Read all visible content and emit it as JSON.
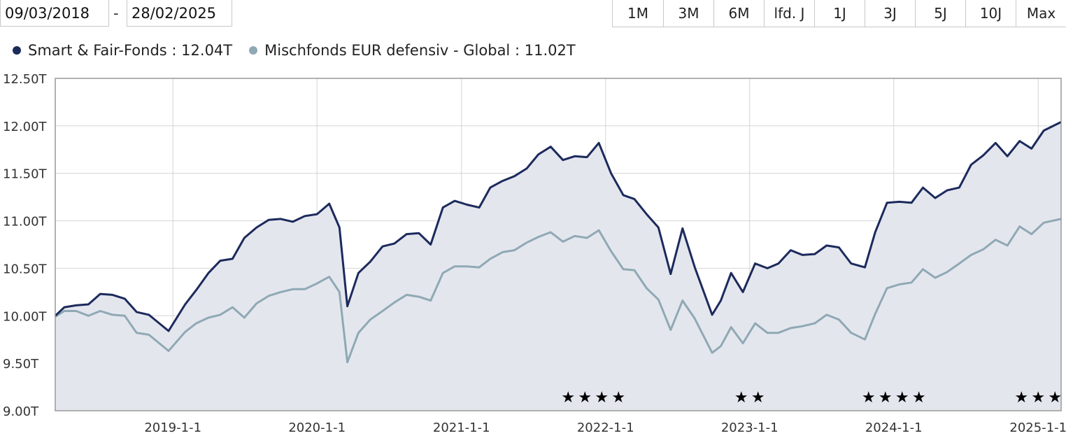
{
  "date_range": {
    "from": "09/03/2018",
    "separator": "-",
    "to": "28/02/2025"
  },
  "range_buttons": [
    "1M",
    "3M",
    "6M",
    "lfd. J",
    "1J",
    "3J",
    "5J",
    "10J",
    "Max"
  ],
  "colors": {
    "fund": "#1c2a5c",
    "category": "#8fa9b4",
    "area": "#e4e6ee",
    "grid": "#d4d4d4",
    "frame": "#999999"
  },
  "chart_data": {
    "type": "line",
    "ylim": [
      9.0,
      12.5
    ],
    "yticks": [
      9.0,
      9.5,
      10.0,
      10.5,
      11.0,
      11.5,
      12.0,
      12.5
    ],
    "ytick_labels": [
      "9.00T",
      "9.50T",
      "10.00T",
      "10.50T",
      "11.00T",
      "11.50T",
      "12.00T",
      "12.50T"
    ],
    "xlim": [
      "2018-03-09",
      "2025-02-28"
    ],
    "xticks": [
      "2019-01-01",
      "2020-01-01",
      "2021-01-01",
      "2022-01-01",
      "2023-01-01",
      "2024-01-01",
      "2025-01-01"
    ],
    "xtick_labels": [
      "2019-1-1",
      "2020-1-1",
      "2021-1-1",
      "2022-1-1",
      "2023-1-1",
      "2024-1-1",
      "2025-1-1"
    ],
    "grid": true,
    "legend_position": "top-left",
    "series": [
      {
        "name": "Smart & Fair-Fonds",
        "legend_value": "12.04T",
        "area_fill": true,
        "points": [
          [
            "2018-03-09",
            10.0
          ],
          [
            "2018-04-01",
            10.09
          ],
          [
            "2018-05-01",
            10.11
          ],
          [
            "2018-06-01",
            10.12
          ],
          [
            "2018-07-01",
            10.23
          ],
          [
            "2018-08-01",
            10.22
          ],
          [
            "2018-09-01",
            10.18
          ],
          [
            "2018-10-01",
            10.04
          ],
          [
            "2018-11-01",
            10.01
          ],
          [
            "2018-12-21",
            9.84
          ],
          [
            "2019-02-01",
            10.12
          ],
          [
            "2019-03-01",
            10.27
          ],
          [
            "2019-04-01",
            10.45
          ],
          [
            "2019-05-01",
            10.58
          ],
          [
            "2019-06-01",
            10.6
          ],
          [
            "2019-07-01",
            10.82
          ],
          [
            "2019-08-01",
            10.93
          ],
          [
            "2019-09-01",
            11.01
          ],
          [
            "2019-10-01",
            11.02
          ],
          [
            "2019-11-01",
            10.99
          ],
          [
            "2019-12-01",
            11.05
          ],
          [
            "2020-01-01",
            11.07
          ],
          [
            "2020-02-01",
            11.18
          ],
          [
            "2020-02-27",
            10.93
          ],
          [
            "2020-03-18",
            10.1
          ],
          [
            "2020-04-15",
            10.45
          ],
          [
            "2020-05-15",
            10.57
          ],
          [
            "2020-06-15",
            10.73
          ],
          [
            "2020-07-15",
            10.76
          ],
          [
            "2020-08-15",
            10.86
          ],
          [
            "2020-09-15",
            10.87
          ],
          [
            "2020-10-15",
            10.75
          ],
          [
            "2020-11-15",
            11.14
          ],
          [
            "2020-12-15",
            11.21
          ],
          [
            "2021-01-15",
            11.17
          ],
          [
            "2021-02-15",
            11.14
          ],
          [
            "2021-03-15",
            11.35
          ],
          [
            "2021-04-15",
            11.42
          ],
          [
            "2021-05-15",
            11.47
          ],
          [
            "2021-06-15",
            11.55
          ],
          [
            "2021-07-15",
            11.7
          ],
          [
            "2021-08-15",
            11.78
          ],
          [
            "2021-09-15",
            11.64
          ],
          [
            "2021-10-15",
            11.68
          ],
          [
            "2021-11-15",
            11.67
          ],
          [
            "2021-12-15",
            11.82
          ],
          [
            "2022-01-15",
            11.5
          ],
          [
            "2022-02-15",
            11.27
          ],
          [
            "2022-03-15",
            11.23
          ],
          [
            "2022-04-15",
            11.07
          ],
          [
            "2022-05-15",
            10.93
          ],
          [
            "2022-06-15",
            10.44
          ],
          [
            "2022-07-15",
            10.92
          ],
          [
            "2022-08-15",
            10.51
          ],
          [
            "2022-09-28",
            10.01
          ],
          [
            "2022-10-20",
            10.16
          ],
          [
            "2022-11-15",
            10.45
          ],
          [
            "2022-12-15",
            10.25
          ],
          [
            "2023-01-15",
            10.55
          ],
          [
            "2023-02-15",
            10.5
          ],
          [
            "2023-03-15",
            10.55
          ],
          [
            "2023-04-15",
            10.69
          ],
          [
            "2023-05-15",
            10.64
          ],
          [
            "2023-06-15",
            10.65
          ],
          [
            "2023-07-15",
            10.74
          ],
          [
            "2023-08-15",
            10.72
          ],
          [
            "2023-09-15",
            10.55
          ],
          [
            "2023-10-20",
            10.51
          ],
          [
            "2023-11-15",
            10.88
          ],
          [
            "2023-12-15",
            11.19
          ],
          [
            "2024-01-15",
            11.2
          ],
          [
            "2024-02-15",
            11.19
          ],
          [
            "2024-03-15",
            11.35
          ],
          [
            "2024-04-15",
            11.24
          ],
          [
            "2024-05-15",
            11.32
          ],
          [
            "2024-06-15",
            11.35
          ],
          [
            "2024-07-15",
            11.59
          ],
          [
            "2024-08-15",
            11.69
          ],
          [
            "2024-09-15",
            11.82
          ],
          [
            "2024-10-15",
            11.68
          ],
          [
            "2024-11-15",
            11.84
          ],
          [
            "2024-12-15",
            11.76
          ],
          [
            "2025-01-15",
            11.95
          ],
          [
            "2025-02-28",
            12.04
          ]
        ]
      },
      {
        "name": "Mischfonds EUR defensiv - Global",
        "legend_value": "11.02T",
        "area_fill": false,
        "points": [
          [
            "2018-03-09",
            9.99
          ],
          [
            "2018-04-01",
            10.05
          ],
          [
            "2018-05-01",
            10.05
          ],
          [
            "2018-06-01",
            10.0
          ],
          [
            "2018-07-01",
            10.05
          ],
          [
            "2018-08-01",
            10.01
          ],
          [
            "2018-09-01",
            10.0
          ],
          [
            "2018-10-01",
            9.82
          ],
          [
            "2018-11-01",
            9.8
          ],
          [
            "2018-12-21",
            9.63
          ],
          [
            "2019-02-01",
            9.83
          ],
          [
            "2019-03-01",
            9.92
          ],
          [
            "2019-04-01",
            9.98
          ],
          [
            "2019-05-01",
            10.01
          ],
          [
            "2019-06-01",
            10.09
          ],
          [
            "2019-07-01",
            9.98
          ],
          [
            "2019-08-01",
            10.13
          ],
          [
            "2019-09-01",
            10.21
          ],
          [
            "2019-10-01",
            10.25
          ],
          [
            "2019-11-01",
            10.28
          ],
          [
            "2019-12-01",
            10.28
          ],
          [
            "2020-01-01",
            10.34
          ],
          [
            "2020-02-01",
            10.41
          ],
          [
            "2020-02-27",
            10.25
          ],
          [
            "2020-03-18",
            9.51
          ],
          [
            "2020-04-15",
            9.82
          ],
          [
            "2020-05-15",
            9.96
          ],
          [
            "2020-06-15",
            10.05
          ],
          [
            "2020-07-15",
            10.14
          ],
          [
            "2020-08-15",
            10.22
          ],
          [
            "2020-09-15",
            10.2
          ],
          [
            "2020-10-15",
            10.16
          ],
          [
            "2020-11-15",
            10.45
          ],
          [
            "2020-12-15",
            10.52
          ],
          [
            "2021-01-15",
            10.52
          ],
          [
            "2021-02-15",
            10.51
          ],
          [
            "2021-03-15",
            10.6
          ],
          [
            "2021-04-15",
            10.67
          ],
          [
            "2021-05-15",
            10.69
          ],
          [
            "2021-06-15",
            10.77
          ],
          [
            "2021-07-15",
            10.83
          ],
          [
            "2021-08-15",
            10.88
          ],
          [
            "2021-09-15",
            10.78
          ],
          [
            "2021-10-15",
            10.84
          ],
          [
            "2021-11-15",
            10.82
          ],
          [
            "2021-12-15",
            10.9
          ],
          [
            "2022-01-15",
            10.68
          ],
          [
            "2022-02-15",
            10.49
          ],
          [
            "2022-03-15",
            10.48
          ],
          [
            "2022-04-15",
            10.29
          ],
          [
            "2022-05-15",
            10.17
          ],
          [
            "2022-06-15",
            9.85
          ],
          [
            "2022-07-15",
            10.16
          ],
          [
            "2022-08-15",
            9.97
          ],
          [
            "2022-09-28",
            9.61
          ],
          [
            "2022-10-20",
            9.68
          ],
          [
            "2022-11-15",
            9.88
          ],
          [
            "2022-12-15",
            9.71
          ],
          [
            "2023-01-15",
            9.92
          ],
          [
            "2023-02-15",
            9.82
          ],
          [
            "2023-03-15",
            9.82
          ],
          [
            "2023-04-15",
            9.87
          ],
          [
            "2023-05-15",
            9.89
          ],
          [
            "2023-06-15",
            9.92
          ],
          [
            "2023-07-15",
            10.01
          ],
          [
            "2023-08-15",
            9.96
          ],
          [
            "2023-09-15",
            9.82
          ],
          [
            "2023-10-20",
            9.75
          ],
          [
            "2023-11-15",
            10.02
          ],
          [
            "2023-12-15",
            10.29
          ],
          [
            "2024-01-15",
            10.33
          ],
          [
            "2024-02-15",
            10.35
          ],
          [
            "2024-03-15",
            10.49
          ],
          [
            "2024-04-15",
            10.4
          ],
          [
            "2024-05-15",
            10.46
          ],
          [
            "2024-06-15",
            10.55
          ],
          [
            "2024-07-15",
            10.64
          ],
          [
            "2024-08-15",
            10.7
          ],
          [
            "2024-09-15",
            10.8
          ],
          [
            "2024-10-15",
            10.74
          ],
          [
            "2024-11-15",
            10.94
          ],
          [
            "2024-12-15",
            10.86
          ],
          [
            "2025-01-15",
            10.98
          ],
          [
            "2025-02-28",
            11.02
          ]
        ]
      }
    ],
    "rating_annotations": [
      {
        "x": "2021-12-01",
        "stars": 4
      },
      {
        "x": "2023-01-01",
        "stars": 2
      },
      {
        "x": "2024-01-01",
        "stars": 4
      },
      {
        "x": "2025-01-01",
        "stars": 3
      }
    ]
  }
}
